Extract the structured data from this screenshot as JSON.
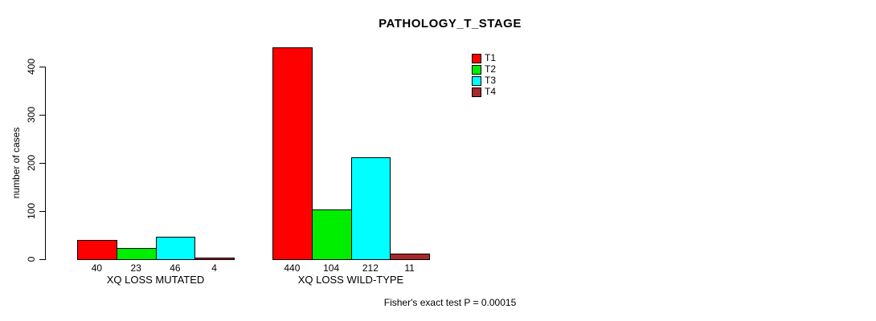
{
  "chart_data": {
    "type": "bar",
    "title": "PATHOLOGY_T_STAGE",
    "xlabel": "",
    "ylabel": "number of cases",
    "ylim": [
      0,
      440
    ],
    "yticks": [
      0,
      100,
      200,
      300,
      400
    ],
    "grid": false,
    "categories": [
      "XQ LOSS MUTATED",
      "XQ LOSS WILD-TYPE"
    ],
    "series": [
      {
        "name": "T1",
        "color": "#ff0000",
        "values": [
          40,
          440
        ]
      },
      {
        "name": "T2",
        "color": "#00ee00",
        "values": [
          23,
          104
        ]
      },
      {
        "name": "T3",
        "color": "#00ffff",
        "values": [
          46,
          212
        ]
      },
      {
        "name": "T4",
        "color": "#a52a2a",
        "values": [
          4,
          11
        ]
      }
    ],
    "bar_value_labels": [
      [
        40,
        23,
        46,
        4
      ],
      [
        440,
        104,
        212,
        11
      ]
    ],
    "legend_position": "top-right",
    "legend_entries": [
      "T1",
      "T2",
      "T3",
      "T4"
    ],
    "annotation": "Fisher's exact test P = 0.00015",
    "bar_border_color": "#000000",
    "background_color": "#ffffff"
  }
}
